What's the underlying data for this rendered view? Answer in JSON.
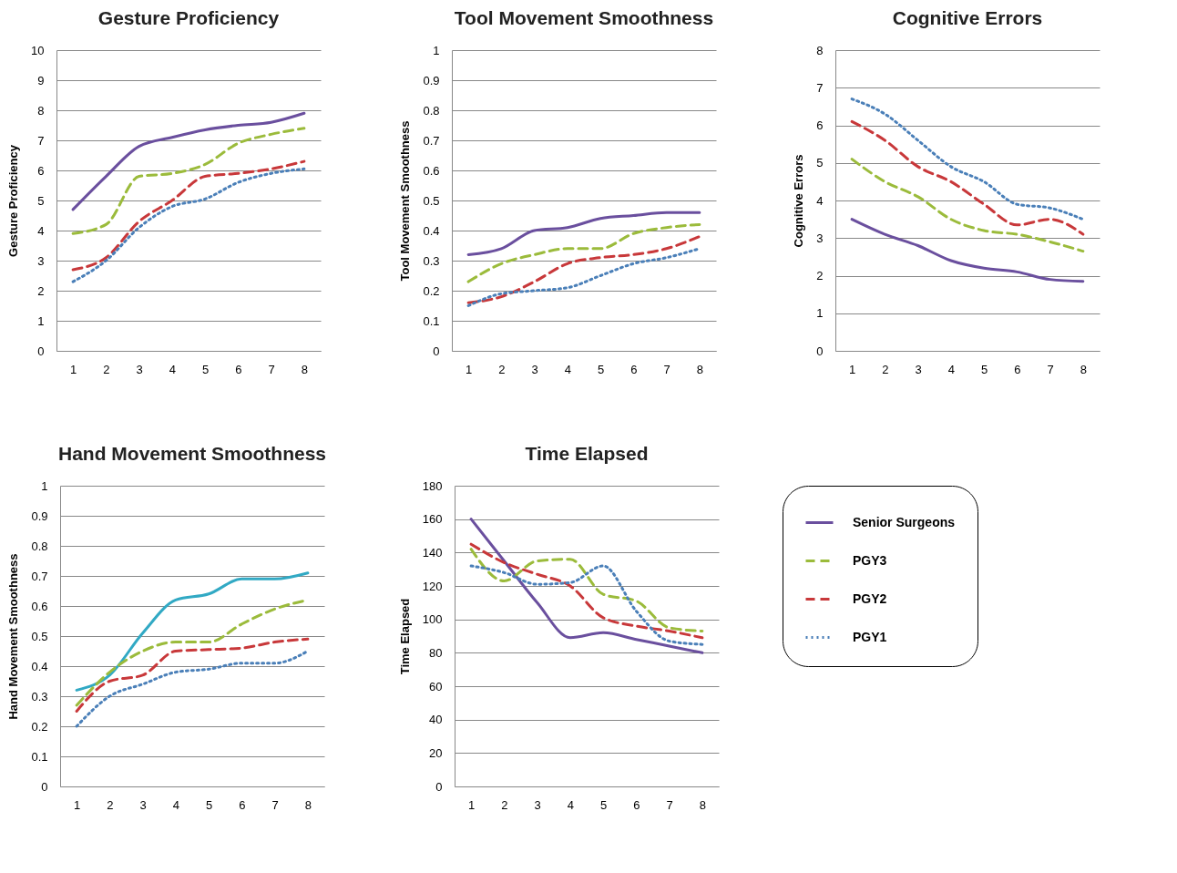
{
  "chart_data": [
    {
      "type": "line",
      "title": "Gesture Proficiency",
      "ylabel": "Gesture Proficiency",
      "categories": [
        "1",
        "2",
        "3",
        "4",
        "5",
        "6",
        "7",
        "8"
      ],
      "ylim": [
        0,
        10
      ],
      "yticks": [
        0,
        1,
        2,
        3,
        4,
        5,
        6,
        7,
        8,
        9,
        10
      ],
      "grid": "y",
      "legend": false,
      "series": [
        {
          "color": "#6a4f9e",
          "line_style": "solid",
          "values": [
            4.7,
            5.8,
            6.8,
            7.1,
            7.35,
            7.5,
            7.6,
            7.9
          ]
        },
        {
          "color": "#9bbb3b",
          "line_style": "dashed",
          "values": [
            3.9,
            4.2,
            5.8,
            5.9,
            6.2,
            6.9,
            7.2,
            7.4
          ]
        },
        {
          "color": "#c8383a",
          "line_style": "dashed",
          "values": [
            2.7,
            3.1,
            4.3,
            5.0,
            5.8,
            5.9,
            6.05,
            6.3
          ]
        },
        {
          "color": "#4a7fb8",
          "line_style": "dotted",
          "values": [
            2.3,
            3.0,
            4.1,
            4.8,
            5.05,
            5.6,
            5.9,
            6.05
          ]
        }
      ]
    },
    {
      "type": "line",
      "title": "Tool Movement Smoothness",
      "ylabel": "Tool Movement Smoothness",
      "categories": [
        "1",
        "2",
        "3",
        "4",
        "5",
        "6",
        "7",
        "8"
      ],
      "ylim": [
        0,
        1
      ],
      "yticks": [
        0,
        0.1,
        0.2,
        0.3,
        0.4,
        0.5,
        0.6,
        0.7,
        0.8,
        0.9,
        1
      ],
      "grid": "y",
      "legend": false,
      "series": [
        {
          "color": "#6a4f9e",
          "line_style": "solid",
          "values": [
            0.32,
            0.34,
            0.4,
            0.41,
            0.44,
            0.45,
            0.46,
            0.46
          ]
        },
        {
          "color": "#9bbb3b",
          "line_style": "dashed",
          "values": [
            0.23,
            0.29,
            0.32,
            0.34,
            0.34,
            0.39,
            0.41,
            0.42
          ]
        },
        {
          "color": "#c8383a",
          "line_style": "dashed",
          "values": [
            0.16,
            0.18,
            0.23,
            0.29,
            0.31,
            0.32,
            0.34,
            0.38
          ]
        },
        {
          "color": "#4a7fb8",
          "line_style": "dotted",
          "values": [
            0.15,
            0.19,
            0.2,
            0.21,
            0.25,
            0.29,
            0.31,
            0.34
          ]
        }
      ]
    },
    {
      "type": "line",
      "title": "Cognitive Errors",
      "ylabel": "Cognitive Errors",
      "categories": [
        "1",
        "2",
        "3",
        "4",
        "5",
        "6",
        "7",
        "8"
      ],
      "ylim": [
        0,
        8
      ],
      "yticks": [
        0,
        1,
        2,
        3,
        4,
        5,
        6,
        7,
        8
      ],
      "grid": "y",
      "legend": false,
      "series": [
        {
          "color": "#6a4f9e",
          "line_style": "solid",
          "values": [
            3.5,
            3.1,
            2.8,
            2.4,
            2.2,
            2.1,
            1.9,
            1.85
          ]
        },
        {
          "color": "#9bbb3b",
          "line_style": "dashed",
          "values": [
            5.1,
            4.5,
            4.1,
            3.5,
            3.2,
            3.1,
            2.9,
            2.65
          ]
        },
        {
          "color": "#c8383a",
          "line_style": "dashed",
          "values": [
            6.1,
            5.6,
            4.9,
            4.5,
            3.9,
            3.35,
            3.5,
            3.1
          ]
        },
        {
          "color": "#4a7fb8",
          "line_style": "dotted",
          "values": [
            6.7,
            6.3,
            5.6,
            4.9,
            4.5,
            3.9,
            3.8,
            3.5
          ]
        }
      ]
    },
    {
      "type": "line",
      "title": "Hand Movement Smoothness",
      "ylabel": "Hand Movement Smoothness",
      "categories": [
        "1",
        "2",
        "3",
        "4",
        "5",
        "6",
        "7",
        "8"
      ],
      "ylim": [
        0,
        1
      ],
      "yticks": [
        0,
        0.1,
        0.2,
        0.3,
        0.4,
        0.5,
        0.6,
        0.7,
        0.8,
        0.9,
        1
      ],
      "grid": "y",
      "legend": false,
      "series": [
        {
          "color": "#31a9c4",
          "line_style": "solid",
          "values": [
            0.32,
            0.37,
            0.51,
            0.62,
            0.64,
            0.69,
            0.69,
            0.71
          ]
        },
        {
          "color": "#9bbb3b",
          "line_style": "dashed",
          "values": [
            0.27,
            0.38,
            0.45,
            0.48,
            0.48,
            0.54,
            0.59,
            0.62
          ]
        },
        {
          "color": "#c8383a",
          "line_style": "dashed",
          "values": [
            0.25,
            0.35,
            0.37,
            0.45,
            0.455,
            0.46,
            0.48,
            0.49
          ]
        },
        {
          "color": "#4a7fb8",
          "line_style": "dotted",
          "values": [
            0.2,
            0.3,
            0.34,
            0.38,
            0.39,
            0.41,
            0.41,
            0.45
          ]
        }
      ]
    },
    {
      "type": "line",
      "title": "Time Elapsed",
      "ylabel": "Time Elapsed",
      "categories": [
        "1",
        "2",
        "3",
        "4",
        "5",
        "6",
        "7",
        "8"
      ],
      "ylim": [
        0,
        180
      ],
      "yticks": [
        0,
        20,
        40,
        60,
        80,
        100,
        120,
        140,
        160,
        180
      ],
      "grid": "y",
      "legend": "right",
      "series": [
        {
          "name": "Senior Surgeons",
          "color": "#6a4f9e",
          "line_style": "solid",
          "values": [
            160,
            135,
            110,
            89,
            92,
            88,
            84,
            80
          ]
        },
        {
          "name": "PGY3",
          "color": "#9bbb3b",
          "line_style": "dashed",
          "values": [
            142,
            123,
            135,
            136,
            115,
            111,
            95,
            93
          ]
        },
        {
          "name": "PGY2",
          "color": "#c8383a",
          "line_style": "dashed",
          "values": [
            145,
            134,
            127,
            120,
            101,
            96,
            93,
            89
          ]
        },
        {
          "name": "PGY1",
          "color": "#4a7fb8",
          "line_style": "dotted",
          "values": [
            132,
            128,
            121,
            122,
            132,
            105,
            87,
            85
          ]
        }
      ]
    }
  ]
}
